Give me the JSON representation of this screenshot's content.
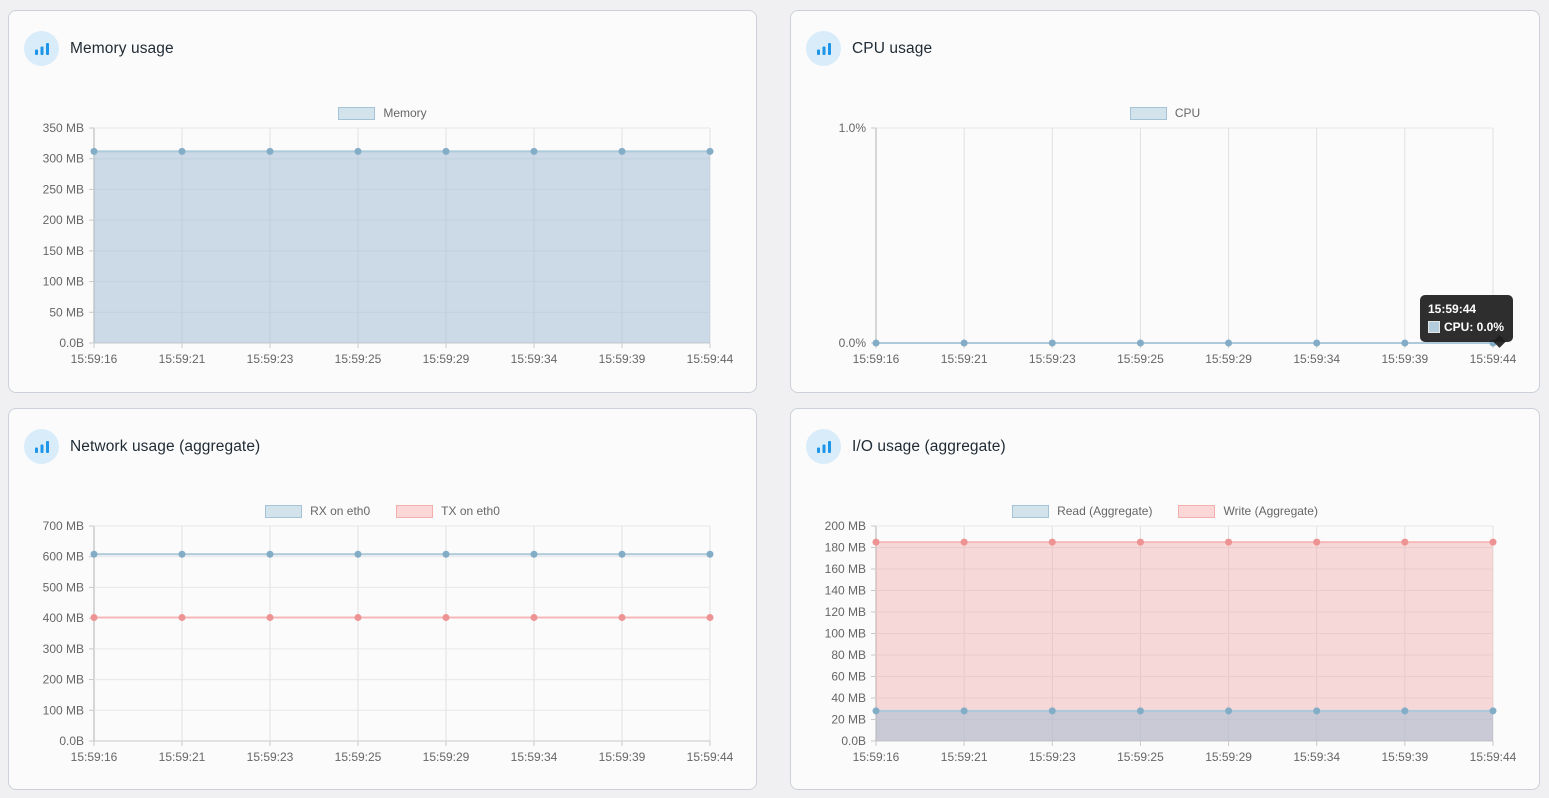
{
  "page": {
    "background": "#f0f0f2"
  },
  "palette": {
    "blue": {
      "line": "#adc9da",
      "point": "#83adc6",
      "fill": "rgba(164,192,212,0.55)",
      "legend_fill": "#d3e3ec",
      "legend_border": "#a5c3d6"
    },
    "pink": {
      "line": "#f6baba",
      "point": "#ee9393",
      "fill": "rgba(243,160,160,0.38)",
      "legend_fill": "#fbd7d7",
      "legend_border": "#f3aeae"
    }
  },
  "grid": {
    "h": "#e7e7e7",
    "v": "#e0e0e0",
    "axis": "#b0b0b0",
    "bottom": "#c9c9c9"
  },
  "axis_text_color": "#666666",
  "tooltip": {
    "title": "15:59:44",
    "label": "CPU: 0.0%",
    "background": "rgba(30,30,30,0.93)",
    "swatch_fill": "#b4cddc",
    "swatch_border": "#e6e6e6"
  },
  "panels": [
    {
      "id": "memory",
      "title": "Memory usage",
      "icon": "bar-chart-icon",
      "chart_data": {
        "type": "area",
        "legend_position": "top",
        "x": [
          "15:59:16",
          "15:59:21",
          "15:59:23",
          "15:59:25",
          "15:59:29",
          "15:59:34",
          "15:59:39",
          "15:59:44"
        ],
        "xlabel": "",
        "ylabel": "",
        "ylim": [
          0,
          350
        ],
        "y_ticks": [
          {
            "value": 350,
            "label": "350 MB"
          },
          {
            "value": 300,
            "label": "300 MB"
          },
          {
            "value": 250,
            "label": "250 MB"
          },
          {
            "value": 200,
            "label": "200 MB"
          },
          {
            "value": 150,
            "label": "150 MB"
          },
          {
            "value": 100,
            "label": "100 MB"
          },
          {
            "value": 50,
            "label": "50 MB"
          },
          {
            "value": 0,
            "label": "0.0B"
          }
        ],
        "series": [
          {
            "name": "Memory",
            "palette": "blue",
            "fill": true,
            "values": [
              312,
              312,
              312,
              312,
              312,
              312,
              312,
              312
            ]
          }
        ]
      }
    },
    {
      "id": "cpu",
      "title": "CPU usage",
      "icon": "bar-chart-icon",
      "chart_data": {
        "type": "line",
        "legend_position": "top",
        "x": [
          "15:59:16",
          "15:59:21",
          "15:59:23",
          "15:59:25",
          "15:59:29",
          "15:59:34",
          "15:59:39",
          "15:59:44"
        ],
        "xlabel": "",
        "ylabel": "",
        "ylim": [
          0,
          1
        ],
        "y_ticks": [
          {
            "value": 1,
            "label": "1.0%"
          },
          {
            "value": 0,
            "label": "0.0%"
          }
        ],
        "series": [
          {
            "name": "CPU",
            "palette": "blue",
            "fill": false,
            "values": [
              0,
              0,
              0,
              0,
              0,
              0,
              0,
              0
            ]
          }
        ]
      }
    },
    {
      "id": "network",
      "title": "Network usage (aggregate)",
      "icon": "bar-chart-icon",
      "chart_data": {
        "type": "line",
        "legend_position": "top",
        "x": [
          "15:59:16",
          "15:59:21",
          "15:59:23",
          "15:59:25",
          "15:59:29",
          "15:59:34",
          "15:59:39",
          "15:59:44"
        ],
        "xlabel": "",
        "ylabel": "",
        "ylim": [
          0,
          700
        ],
        "y_ticks": [
          {
            "value": 700,
            "label": "700 MB"
          },
          {
            "value": 600,
            "label": "600 MB"
          },
          {
            "value": 500,
            "label": "500 MB"
          },
          {
            "value": 400,
            "label": "400 MB"
          },
          {
            "value": 300,
            "label": "300 MB"
          },
          {
            "value": 200,
            "label": "200 MB"
          },
          {
            "value": 100,
            "label": "100 MB"
          },
          {
            "value": 0,
            "label": "0.0B"
          }
        ],
        "series": [
          {
            "name": "RX on eth0",
            "palette": "blue",
            "fill": false,
            "values": [
              608,
              608,
              608,
              608,
              608,
              608,
              608,
              608
            ]
          },
          {
            "name": "TX on eth0",
            "palette": "pink",
            "fill": false,
            "values": [
              402,
              402,
              402,
              402,
              402,
              402,
              402,
              402
            ]
          }
        ]
      }
    },
    {
      "id": "io",
      "title": "I/O usage (aggregate)",
      "icon": "bar-chart-icon",
      "chart_data": {
        "type": "area",
        "legend_position": "top",
        "x": [
          "15:59:16",
          "15:59:21",
          "15:59:23",
          "15:59:25",
          "15:59:29",
          "15:59:34",
          "15:59:39",
          "15:59:44"
        ],
        "xlabel": "",
        "ylabel": "",
        "ylim": [
          0,
          200
        ],
        "y_ticks": [
          {
            "value": 200,
            "label": "200 MB"
          },
          {
            "value": 180,
            "label": "180 MB"
          },
          {
            "value": 160,
            "label": "160 MB"
          },
          {
            "value": 140,
            "label": "140 MB"
          },
          {
            "value": 120,
            "label": "120 MB"
          },
          {
            "value": 100,
            "label": "100 MB"
          },
          {
            "value": 80,
            "label": "80 MB"
          },
          {
            "value": 60,
            "label": "60 MB"
          },
          {
            "value": 40,
            "label": "40 MB"
          },
          {
            "value": 20,
            "label": "20 MB"
          },
          {
            "value": 0,
            "label": "0.0B"
          }
        ],
        "series": [
          {
            "name": "Read (Aggregate)",
            "palette": "blue",
            "fill": true,
            "values": [
              28,
              28,
              28,
              28,
              28,
              28,
              28,
              28
            ]
          },
          {
            "name": "Write (Aggregate)",
            "palette": "pink",
            "fill": true,
            "values": [
              185,
              185,
              185,
              185,
              185,
              185,
              185,
              185
            ]
          }
        ]
      }
    }
  ]
}
